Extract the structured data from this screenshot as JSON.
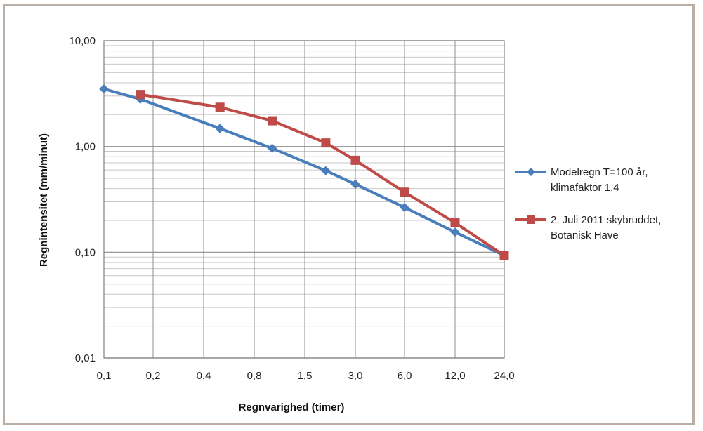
{
  "chart_data": {
    "type": "line",
    "xlabel": "Regnvarighed (timer)",
    "ylabel": "Regnintensitet (mm/minut)",
    "x_ticks": [
      "0,1",
      "0,2",
      "0,4",
      "0,8",
      "1,5",
      "3,0",
      "6,0",
      "12,0",
      "24,0"
    ],
    "y_ticks": [
      {
        "value": 10,
        "label": "10,00"
      },
      {
        "value": 1,
        "label": "1,00"
      },
      {
        "value": 0.1,
        "label": "0,10"
      },
      {
        "value": 0.01,
        "label": "0,01"
      }
    ],
    "y_scale": "log",
    "ylim": [
      0.01,
      10
    ],
    "grid": true,
    "legend_position": "right",
    "series": [
      {
        "name": "Modelregn T=100 år, klimafaktor 1,4",
        "legend_lines": [
          "Modelregn T=100 år,",
          "klimafaktor 1,4"
        ],
        "color": "#4a7ebb",
        "marker": "diamond",
        "x": [
          0.1,
          0.167,
          0.5,
          1.0,
          2.0,
          3.0,
          6.0,
          12.0,
          24.0
        ],
        "y": [
          3.5,
          2.8,
          1.48,
          0.96,
          0.59,
          0.44,
          0.265,
          0.155,
          0.093
        ]
      },
      {
        "name": "2. Juli 2011 skybruddet, Botanisk Have",
        "legend_lines": [
          "2. Juli 2011 skybruddet,",
          "Botanisk Have"
        ],
        "color": "#be4b48",
        "marker": "square",
        "x": [
          0.167,
          0.5,
          1.0,
          2.0,
          3.0,
          6.0,
          12.0,
          24.0
        ],
        "y": [
          3.1,
          2.35,
          1.75,
          1.08,
          0.74,
          0.37,
          0.19,
          0.093
        ]
      }
    ]
  }
}
